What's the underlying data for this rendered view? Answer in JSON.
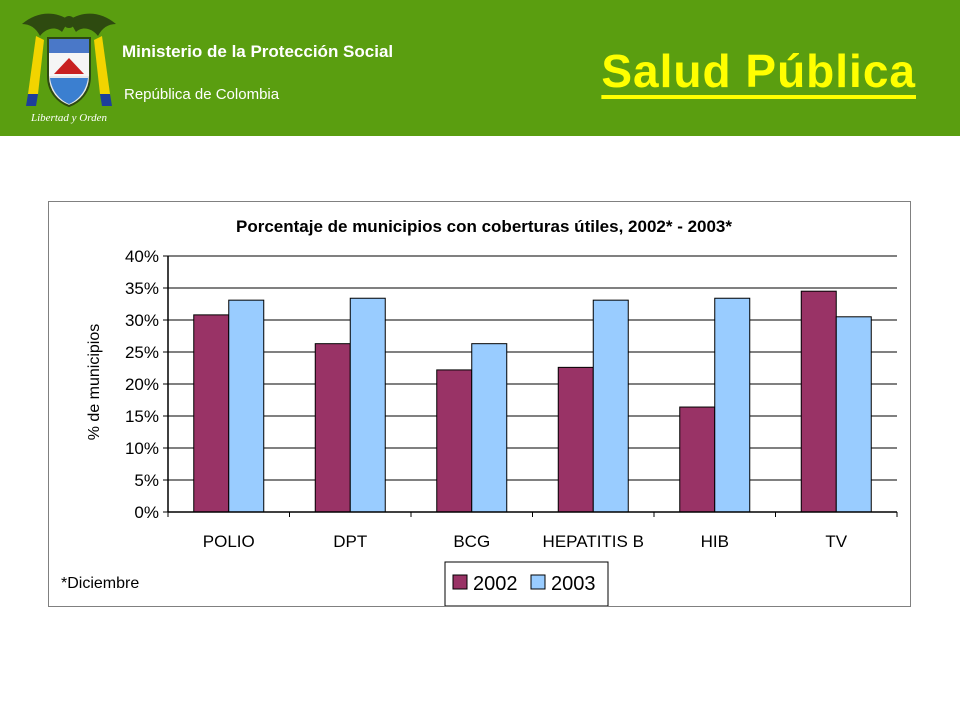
{
  "header": {
    "ministry": "Ministerio de la Protección Social",
    "republic": "República de Colombia",
    "motto": "Libertad y Orden",
    "page_title": "Salud Pública",
    "logo_icon": "colombia-coat-of-arms-icon",
    "colors": {
      "background": "#5a9e10",
      "title": "#ffff00",
      "text": "#ffffff"
    }
  },
  "chart_data": {
    "type": "bar",
    "title": "Porcentaje de municipios con coberturas útiles, 2002* - 2003*",
    "ylabel": "% de municipios",
    "xlabel": "",
    "categories": [
      "POLIO",
      "DPT",
      "BCG",
      "HEPATITIS B",
      "HIB",
      "TV"
    ],
    "series": [
      {
        "name": "2002",
        "color": "#993366",
        "values": [
          30.8,
          26.3,
          22.2,
          22.6,
          16.4,
          34.5
        ]
      },
      {
        "name": "2003",
        "color": "#99ccff",
        "values": [
          33.1,
          33.4,
          26.3,
          33.1,
          33.4,
          30.5
        ]
      }
    ],
    "ylim": [
      0,
      40
    ],
    "yticks": [
      "0%",
      "5%",
      "10%",
      "15%",
      "20%",
      "25%",
      "30%",
      "35%",
      "40%"
    ],
    "grid": true,
    "legend_position": "bottom",
    "footnote": "*Diciembre"
  }
}
